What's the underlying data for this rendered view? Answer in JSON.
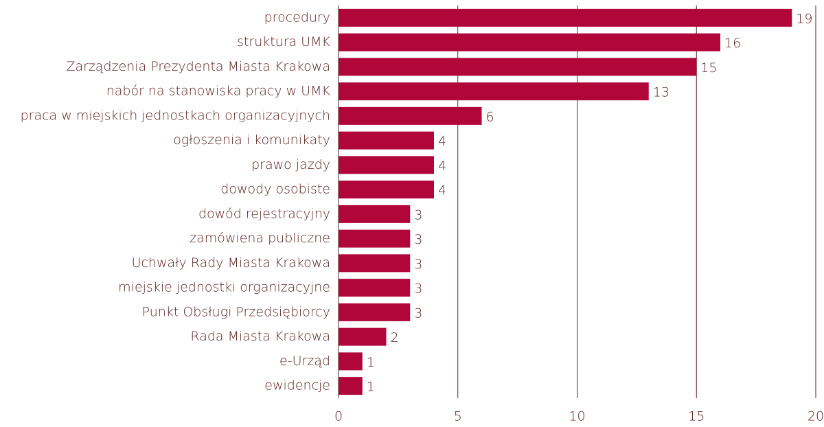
{
  "chart_data": {
    "type": "barh",
    "categories": [
      "procedury",
      "struktura UMK",
      "Zarządzenia Prezydenta Miasta Krakowa",
      "nabór na stanowiska pracy w UMK",
      "praca w miejskich jednostkach organizacyjnych",
      "ogłoszenia i komunikaty",
      "prawo jazdy",
      "dowody osobiste",
      "dowód rejestracyjny",
      "zamówiena publiczne",
      "Uchwały Rady Miasta Krakowa",
      "miejskie jednostki organizacyjne",
      "Punkt Obsługi Przedsiębiorcy",
      "Rada Miasta Krakowa",
      "e-Urząd",
      "ewidencje"
    ],
    "values": [
      19,
      16,
      15,
      13,
      6,
      4,
      4,
      4,
      3,
      3,
      3,
      3,
      3,
      2,
      1,
      1
    ],
    "color": "#b0063a",
    "xlim": [
      0,
      20
    ],
    "xticks": [
      0,
      5,
      10,
      15,
      20
    ],
    "grid": true
  }
}
